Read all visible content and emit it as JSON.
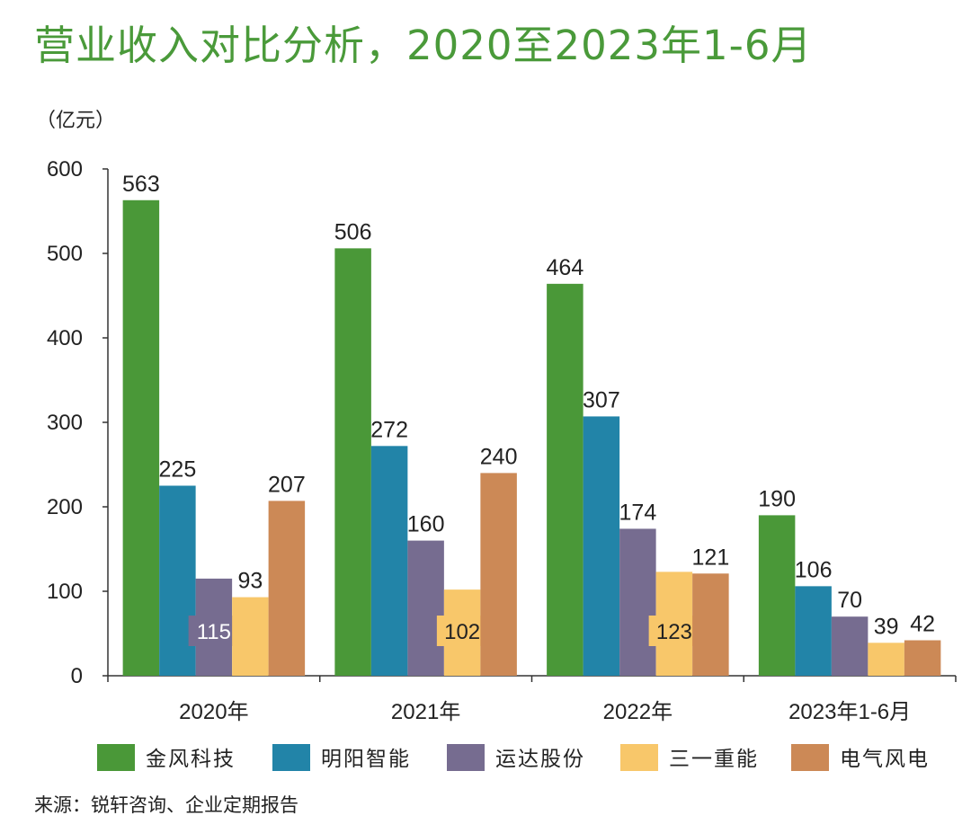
{
  "chart_data": {
    "type": "bar",
    "title": "营业收入对比分析，2020至2023年1-6月",
    "ylabel": "（亿元）",
    "xlabel": "",
    "ylim": [
      0,
      600
    ],
    "yticks": [
      "0",
      "100",
      "200",
      "300",
      "400",
      "500",
      "600"
    ],
    "categories": [
      "2020年",
      "2021年",
      "2022年",
      "2023年1-6月"
    ],
    "series": [
      {
        "name": "金风科技",
        "color": "#4a9838",
        "values": [
          563,
          506,
          464,
          190
        ]
      },
      {
        "name": "明阳智能",
        "color": "#2284a8",
        "values": [
          225,
          272,
          307,
          106
        ]
      },
      {
        "name": "运达股份",
        "color": "#766c90",
        "values": [
          115,
          160,
          174,
          70
        ]
      },
      {
        "name": "三一重能",
        "color": "#f8c76a",
        "values": [
          93,
          102,
          123,
          39
        ]
      },
      {
        "name": "电气风电",
        "color": "#cc8956",
        "values": [
          207,
          240,
          121,
          42
        ]
      }
    ],
    "grid": false,
    "legend": "bottom",
    "source": "来源：锐轩咨询、企业定期报告"
  }
}
